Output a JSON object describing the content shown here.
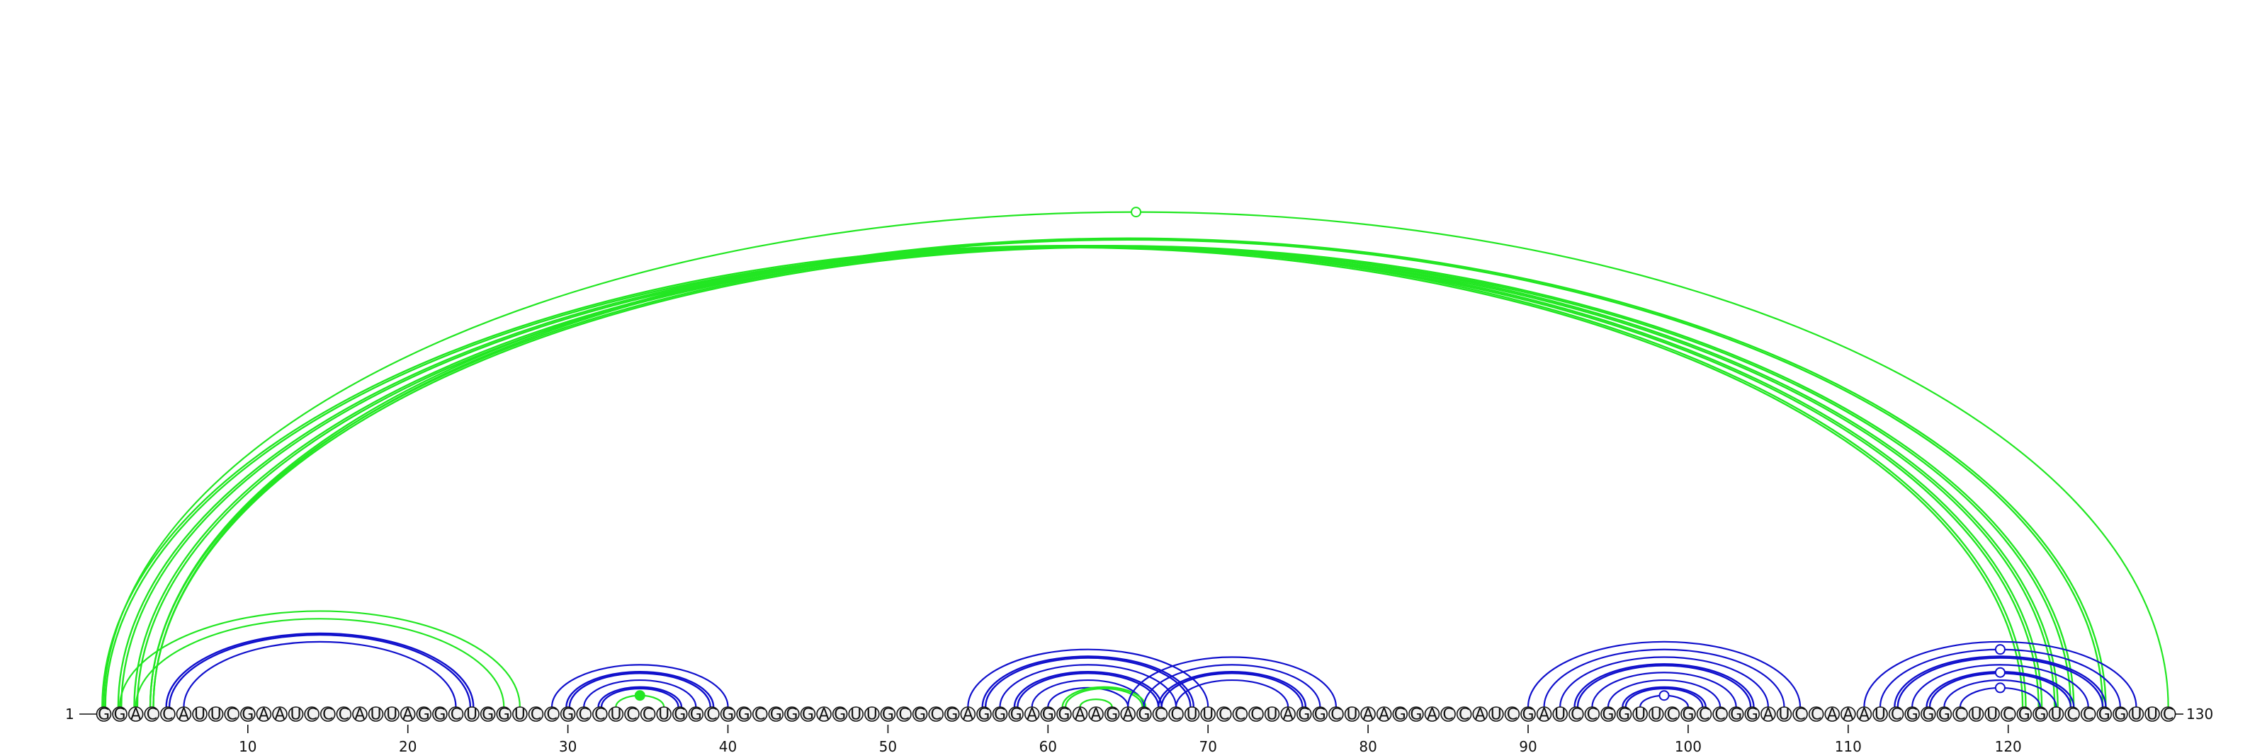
{
  "colors": {
    "green": "#22e622",
    "blue": "#1010cc"
  },
  "sequence": {
    "text": "GGACCAUUCGAAUCCCAUUAGGCUGGUCCGCCUCCUGGCGGCGGGAGUUGCGCGAGGGAGGAAGAGCCUUCCCUAGGCUAAGGACCAUCGAUCCGGUUCGCCGGAUCCAAAUCGGGCUUCGGUCCGGUUC",
    "start_label": "1",
    "end_label": "130"
  },
  "ticks": [
    {
      "pos": 10,
      "label": "10"
    },
    {
      "pos": 20,
      "label": "20"
    },
    {
      "pos": 30,
      "label": "30"
    },
    {
      "pos": 40,
      "label": "40"
    },
    {
      "pos": 50,
      "label": "50"
    },
    {
      "pos": 60,
      "label": "60"
    },
    {
      "pos": 70,
      "label": "70"
    },
    {
      "pos": 80,
      "label": "80"
    },
    {
      "pos": 90,
      "label": "90"
    },
    {
      "pos": 100,
      "label": "100"
    },
    {
      "pos": 110,
      "label": "110"
    },
    {
      "pos": 120,
      "label": "120"
    }
  ],
  "arcs": [
    {
      "i": 1,
      "j": 121,
      "color": "green",
      "weight": "double"
    },
    {
      "i": 2,
      "j": 122,
      "color": "green",
      "weight": "double"
    },
    {
      "i": 3,
      "j": 123,
      "color": "green",
      "weight": "double"
    },
    {
      "i": 4,
      "j": 124,
      "color": "green",
      "weight": "double"
    },
    {
      "i": 4,
      "j": 126,
      "color": "green",
      "weight": "double"
    },
    {
      "i": 1,
      "j": 130,
      "color": "green",
      "weight": "single",
      "marker": "open"
    },
    {
      "i": 2,
      "j": 27,
      "color": "green",
      "weight": "single"
    },
    {
      "i": 3,
      "j": 26,
      "color": "green",
      "weight": "single"
    },
    {
      "i": 5,
      "j": 24,
      "color": "blue",
      "weight": "double"
    },
    {
      "i": 6,
      "j": 23,
      "color": "blue",
      "weight": "single"
    },
    {
      "i": 29,
      "j": 40,
      "color": "blue",
      "weight": "single"
    },
    {
      "i": 30,
      "j": 39,
      "color": "blue",
      "weight": "double"
    },
    {
      "i": 31,
      "j": 38,
      "color": "blue",
      "weight": "single"
    },
    {
      "i": 32,
      "j": 37,
      "color": "blue",
      "weight": "double"
    },
    {
      "i": 33,
      "j": 36,
      "color": "green",
      "weight": "single",
      "marker": "filled"
    },
    {
      "i": 55,
      "j": 70,
      "color": "blue",
      "weight": "single"
    },
    {
      "i": 56,
      "j": 69,
      "color": "blue",
      "weight": "double"
    },
    {
      "i": 57,
      "j": 68,
      "color": "blue",
      "weight": "single"
    },
    {
      "i": 58,
      "j": 67,
      "color": "blue",
      "weight": "double"
    },
    {
      "i": 59,
      "j": 66,
      "color": "blue",
      "weight": "single"
    },
    {
      "i": 60,
      "j": 65,
      "color": "blue",
      "weight": "single"
    },
    {
      "i": 61,
      "j": 66,
      "color": "green",
      "weight": "double"
    },
    {
      "i": 62,
      "j": 64,
      "color": "green",
      "weight": "single"
    },
    {
      "i": 65,
      "j": 78,
      "color": "blue",
      "weight": "single"
    },
    {
      "i": 66,
      "j": 77,
      "color": "blue",
      "weight": "single"
    },
    {
      "i": 67,
      "j": 76,
      "color": "blue",
      "weight": "double"
    },
    {
      "i": 68,
      "j": 75,
      "color": "blue",
      "weight": "single"
    },
    {
      "i": 90,
      "j": 107,
      "color": "blue",
      "weight": "single"
    },
    {
      "i": 91,
      "j": 106,
      "color": "blue",
      "weight": "single"
    },
    {
      "i": 92,
      "j": 105,
      "color": "blue",
      "weight": "single"
    },
    {
      "i": 93,
      "j": 104,
      "color": "blue",
      "weight": "double"
    },
    {
      "i": 94,
      "j": 103,
      "color": "blue",
      "weight": "single"
    },
    {
      "i": 95,
      "j": 102,
      "color": "blue",
      "weight": "single"
    },
    {
      "i": 96,
      "j": 101,
      "color": "blue",
      "weight": "double"
    },
    {
      "i": 97,
      "j": 100,
      "color": "blue",
      "weight": "single",
      "marker": "open"
    },
    {
      "i": 111,
      "j": 128,
      "color": "blue",
      "weight": "single"
    },
    {
      "i": 112,
      "j": 127,
      "color": "blue",
      "weight": "single",
      "marker": "open"
    },
    {
      "i": 113,
      "j": 126,
      "color": "blue",
      "weight": "double"
    },
    {
      "i": 114,
      "j": 125,
      "color": "blue",
      "weight": "single"
    },
    {
      "i": 115,
      "j": 124,
      "color": "blue",
      "weight": "double",
      "marker": "open"
    },
    {
      "i": 116,
      "j": 123,
      "color": "blue",
      "weight": "single"
    },
    {
      "i": 117,
      "j": 122,
      "color": "blue",
      "weight": "single",
      "marker": "open"
    }
  ]
}
